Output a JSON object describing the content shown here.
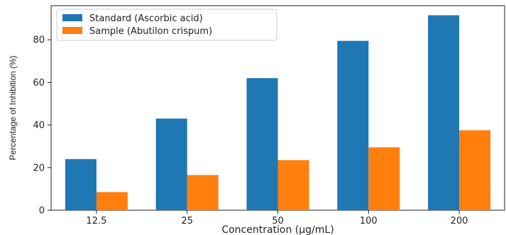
{
  "chart_data": {
    "type": "bar",
    "categories": [
      "12.5",
      "25",
      "50",
      "100",
      "200"
    ],
    "series": [
      {
        "name": "Standard (Ascorbic acid)",
        "color": "#1f77b4",
        "values": [
          24,
          43,
          62,
          79.5,
          91.5
        ]
      },
      {
        "name": "Sample (Abutilon crispum)",
        "color": "#ff7f0e",
        "values": [
          8.5,
          16.5,
          23.5,
          29.5,
          37.5
        ]
      }
    ],
    "title": "",
    "xlabel": "Concentration (µg/mL)",
    "ylabel": "Percentage of Inhibition (%)",
    "ylim": [
      0,
      96
    ],
    "yticks": [
      0,
      20,
      40,
      60,
      80
    ],
    "grid": false,
    "legend_position": "top-left"
  }
}
